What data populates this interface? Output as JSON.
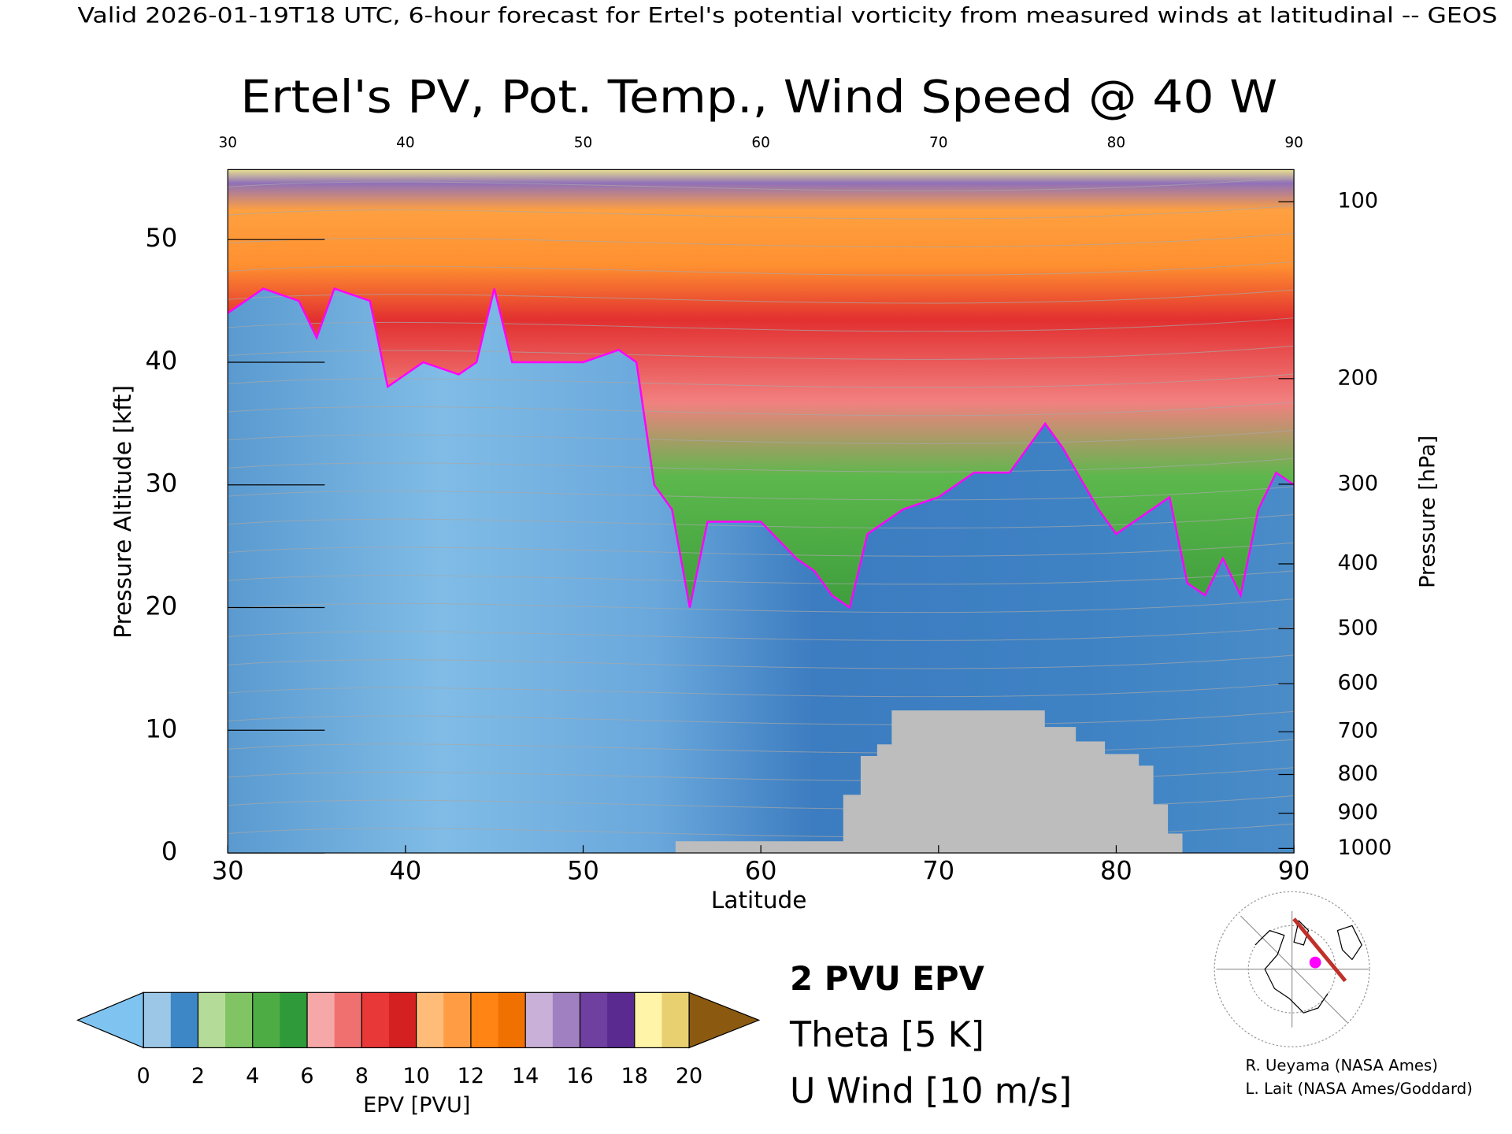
{
  "header": "Valid 2026-01-19T18 UTC, 6-hour forecast for Ertel's potential vorticity from measured winds at latitudinal -- GEOS",
  "chart_data": {
    "type": "cross-section",
    "title": "Ertel's PV, Pot. Temp., Wind Speed @ 40 W",
    "x_label": "Latitude",
    "y_label": "Pressure Altitude [kft]",
    "y2_label": "Pressure [hPa]",
    "xlim": [
      30,
      90
    ],
    "xticks": [
      30,
      40,
      50,
      60,
      70,
      80,
      90
    ],
    "ylim": [
      0,
      55.7
    ],
    "yticks": [
      0,
      10,
      20,
      30,
      40,
      50
    ],
    "y2lim": [
      1013,
      88
    ],
    "y2ticks": [
      100,
      200,
      300,
      400,
      500,
      600,
      700,
      800,
      900,
      1000
    ],
    "series": [
      {
        "name": "2 PVU EPV",
        "color": "#ff00ff",
        "x": [
          30,
          32,
          34,
          35,
          36,
          38,
          39,
          40,
          41,
          43,
          44,
          45,
          46,
          48,
          50,
          52,
          53,
          54,
          55,
          56,
          57,
          60,
          62,
          63,
          64,
          65,
          66,
          68,
          70,
          72,
          74,
          76,
          77,
          79,
          80,
          82,
          83,
          84,
          85,
          86,
          87,
          88,
          89,
          90
        ],
        "values": [
          44,
          46,
          45,
          42,
          46,
          45,
          38,
          39,
          40,
          39,
          40,
          46,
          40,
          40,
          40,
          41,
          40,
          30,
          28,
          20,
          27,
          27,
          24,
          23,
          21,
          20,
          26,
          28,
          29,
          31,
          31,
          35,
          33,
          28,
          26,
          28,
          29,
          22,
          21,
          24,
          21,
          28,
          31,
          30
        ]
      }
    ],
    "contours": [
      {
        "name": "Theta [5 K]",
        "color": "#a8a8a8"
      },
      {
        "name": "U Wind [10 m/s]",
        "color": "#000000"
      }
    ]
  },
  "colorbar": {
    "label": "EPV [PVU]",
    "lim": [
      0,
      20
    ],
    "ticks": [
      0,
      2,
      4,
      6,
      8,
      10,
      12,
      14,
      16,
      18,
      20
    ],
    "colors": [
      "#9cc7e6",
      "#3e87c6",
      "#b4dc98",
      "#80c464",
      "#4eac44",
      "#2e9a3a",
      "#f6a8a8",
      "#f07070",
      "#e83838",
      "#d42020",
      "#ffbc78",
      "#ff9c44",
      "#ff8414",
      "#f07000",
      "#c8b0d8",
      "#a080c0",
      "#7040a0",
      "#5a2a90",
      "#fff4a8",
      "#e8d070"
    ],
    "under": "#7fc4f0",
    "over": "#8b5a10"
  },
  "credits": [
    "R. Ueyama (NASA Ames)",
    "L. Lait (NASA Ames/Goddard)"
  ]
}
